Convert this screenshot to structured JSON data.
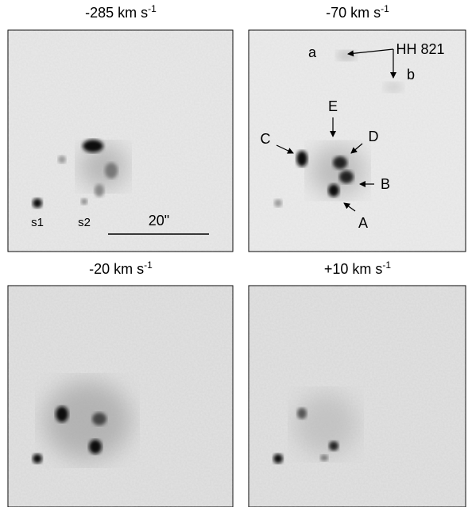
{
  "panels": [
    {
      "title": "-285 km s",
      "title_superscript": "-1",
      "labels": [
        "s1",
        "s2",
        "20\""
      ]
    },
    {
      "title": "-70 km s",
      "title_superscript": "-1",
      "labels": [
        "a",
        "HH 821",
        "b",
        "E",
        "C",
        "D",
        "B",
        "A"
      ]
    },
    {
      "title": "-20 km s",
      "title_superscript": "-1",
      "labels": []
    },
    {
      "title": "+10 km s",
      "title_superscript": "-1",
      "labels": []
    }
  ]
}
